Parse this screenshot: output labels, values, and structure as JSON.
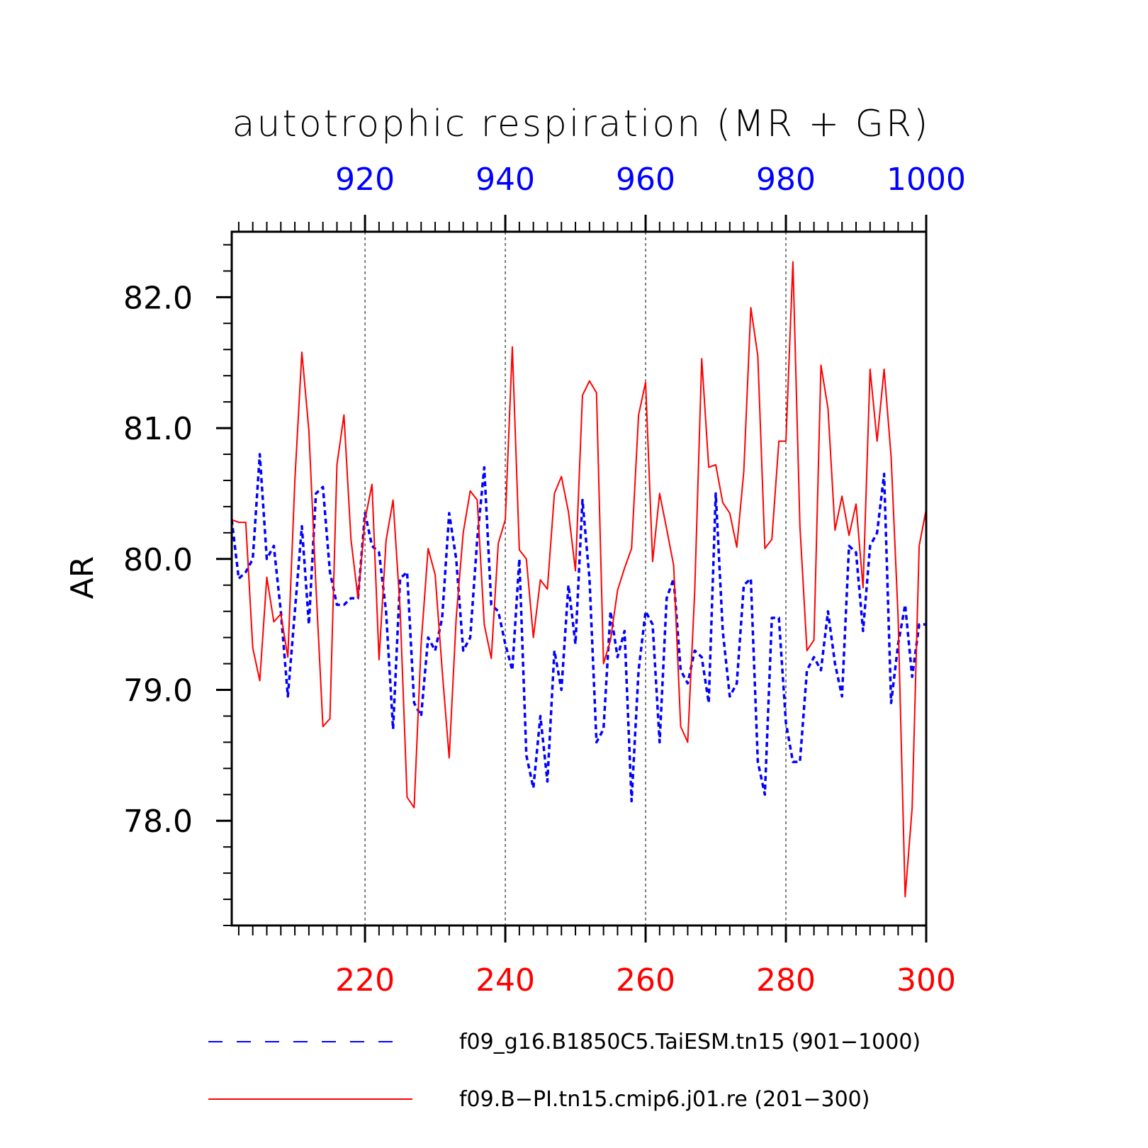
{
  "chart_data": {
    "type": "line",
    "title": "autotrophic respiration (MR + GR)",
    "ylabel": "AR",
    "ylim": [
      77.2,
      82.5
    ],
    "y_ticks": [
      78.0,
      79.0,
      80.0,
      81.0,
      82.0
    ],
    "y_tick_labels": [
      "78.0",
      "79.0",
      "80.0",
      "81.0",
      "82.0"
    ],
    "grid": "dashed vertical lines at major x ticks",
    "x_bottom": {
      "range": [
        201,
        300
      ],
      "ticks": [
        220,
        240,
        260,
        280,
        300
      ],
      "tick_labels": [
        "220",
        "240",
        "260",
        "280",
        "300"
      ],
      "color": "#ff0000"
    },
    "x_top": {
      "range": [
        901,
        1000
      ],
      "ticks": [
        920,
        940,
        960,
        980,
        1000
      ],
      "tick_labels": [
        "920",
        "940",
        "960",
        "980",
        "1000"
      ],
      "color": "#0000ff"
    },
    "series": [
      {
        "name": "f09_g16.B1850C5.TaiESM.tn15 (901−1000)",
        "color": "#0000ff",
        "dash": "dashed",
        "axis": "top",
        "x_start": 901,
        "values": [
          80.3,
          79.85,
          79.9,
          80.0,
          80.8,
          80.0,
          80.1,
          79.6,
          78.95,
          79.6,
          80.25,
          79.5,
          80.5,
          80.55,
          79.9,
          79.65,
          79.65,
          79.7,
          79.7,
          80.35,
          80.1,
          80.05,
          79.6,
          78.7,
          79.85,
          79.9,
          78.9,
          78.8,
          79.4,
          79.3,
          79.55,
          80.35,
          80.0,
          79.3,
          79.4,
          80.15,
          80.7,
          79.65,
          79.6,
          79.35,
          79.15,
          80.0,
          78.5,
          78.25,
          78.8,
          78.3,
          79.3,
          79.0,
          79.8,
          79.35,
          80.45,
          79.85,
          78.6,
          78.7,
          79.6,
          79.25,
          79.45,
          78.15,
          79.15,
          79.6,
          79.5,
          78.6,
          79.7,
          79.85,
          79.15,
          79.05,
          79.3,
          79.25,
          78.9,
          80.5,
          79.45,
          78.95,
          79.05,
          79.8,
          79.85,
          78.45,
          78.2,
          79.55,
          79.55,
          78.75,
          78.45,
          78.45,
          79.15,
          79.25,
          79.15,
          79.6,
          79.2,
          78.95,
          80.1,
          80.05,
          79.45,
          80.1,
          80.2,
          80.65,
          78.9,
          79.35,
          79.65,
          79.1,
          79.5,
          79.5
        ]
      },
      {
        "name": "f09.B−PI.tn15.cmip6.j01.re (201−300)",
        "color": "#ff0000",
        "dash": "solid",
        "axis": "bottom",
        "x_start": 201,
        "values": [
          80.3,
          80.28,
          80.28,
          79.32,
          79.07,
          79.86,
          79.52,
          79.58,
          79.25,
          80.6,
          81.58,
          80.98,
          79.8,
          78.72,
          78.78,
          80.72,
          81.1,
          80.15,
          79.7,
          80.3,
          80.57,
          79.23,
          80.14,
          80.45,
          79.62,
          78.18,
          78.1,
          79.35,
          80.08,
          79.88,
          79.15,
          78.48,
          79.55,
          80.2,
          80.52,
          80.45,
          79.5,
          79.24,
          80.12,
          80.3,
          81.62,
          80.07,
          80.0,
          79.4,
          79.84,
          79.77,
          80.5,
          80.63,
          80.36,
          79.91,
          81.25,
          81.36,
          81.27,
          79.2,
          79.38,
          79.76,
          79.93,
          80.08,
          81.1,
          81.35,
          79.98,
          80.5,
          80.23,
          79.95,
          78.72,
          78.6,
          79.75,
          81.53,
          80.7,
          80.72,
          80.43,
          80.35,
          80.09,
          80.67,
          81.92,
          81.55,
          80.08,
          80.15,
          80.9,
          80.9,
          82.27,
          80.25,
          79.3,
          79.38,
          81.48,
          81.15,
          80.22,
          80.48,
          80.18,
          80.42,
          79.78,
          81.45,
          80.9,
          81.45,
          80.78,
          79.55,
          77.42,
          78.1,
          80.1,
          80.38
        ]
      }
    ]
  }
}
